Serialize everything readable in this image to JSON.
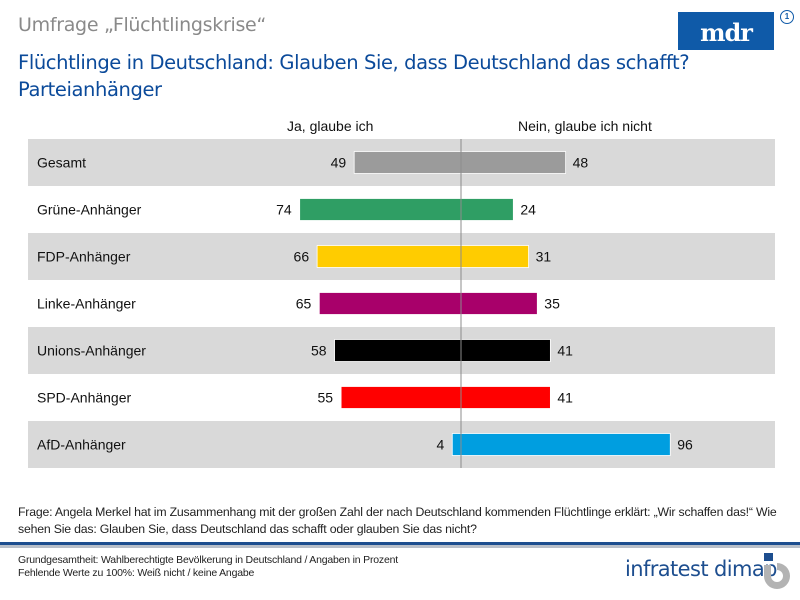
{
  "header": {
    "kicker": "Umfrage „Flüchtlingskrise“",
    "title_line1": "Flüchtlinge in Deutschland: Glauben Sie, dass Deutschland das schafft?",
    "title_line2": "Parteianhänger",
    "logo_text": "mdr",
    "logo_badge": "1"
  },
  "chart_data": {
    "type": "bar",
    "orientation": "diverging-horizontal",
    "title": "Flüchtlinge in Deutschland: Glauben Sie, dass Deutschland das schafft? Parteianhänger",
    "xlabel": "",
    "ylabel": "",
    "unit": "Prozent",
    "categories": [
      "Gesamt",
      "Grüne-Anhänger",
      "FDP-Anhänger",
      "Linke-Anhänger",
      "Unions-Anhänger",
      "SPD-Anhänger",
      "AfD-Anhänger"
    ],
    "series": [
      {
        "name": "Ja, glaube ich",
        "side": "left",
        "values": [
          49,
          74,
          66,
          65,
          58,
          55,
          4
        ]
      },
      {
        "name": "Nein, glaube ich nicht",
        "side": "right",
        "values": [
          48,
          24,
          31,
          35,
          41,
          41,
          96
        ]
      }
    ],
    "colors": [
      "#9b9b9b",
      "#2f9e64",
      "#ffcc00",
      "#a8006a",
      "#000000",
      "#ff0000",
      "#009ee0"
    ],
    "row_band_colors": [
      "#d9d9d9",
      "#ffffff"
    ],
    "axis_center_color": "#8c8c8c",
    "grid": false,
    "legend": "top"
  },
  "footer": {
    "question": "Frage: Angela Merkel hat im Zusammenhang  mit der großen Zahl der nach Deutschland kommenden Flüchtlinge erklärt: „Wir schaffen das!“ Wie sehen Sie das: Glauben Sie, dass Deutschland das schafft oder glauben Sie das nicht?",
    "basis": "Grundgesamtheit:  Wahlberechtigte Bevölkerung  in Deutschland / Angaben  in Prozent",
    "missing": "Fehlende Werte zu 100%: Weiß nicht / keine Angabe",
    "brand": "infratest dimap"
  }
}
